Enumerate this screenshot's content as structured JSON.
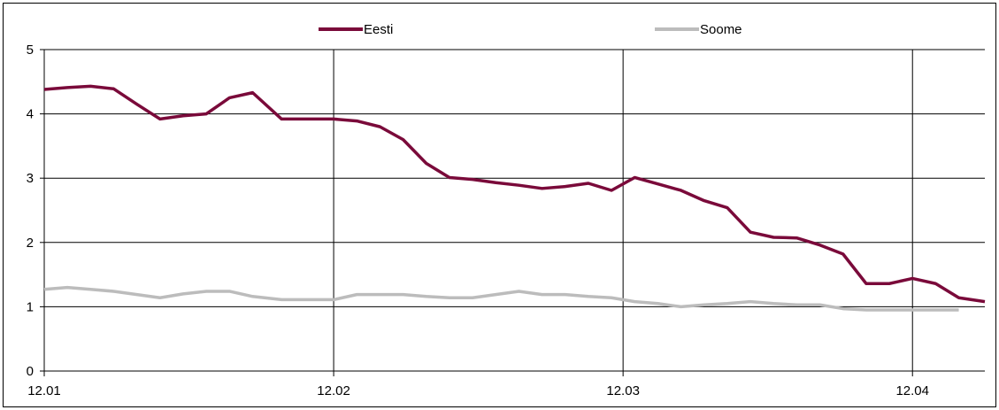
{
  "chart_data": {
    "type": "line",
    "x_ticks": [
      "12.01",
      "12.02",
      "12.03",
      "12.04"
    ],
    "y_ticks": [
      "0",
      "1",
      "2",
      "3",
      "4",
      "5"
    ],
    "ylim": [
      0,
      5
    ],
    "xlim": [
      0,
      3.25
    ],
    "grid": true,
    "legend_position": "top",
    "series": [
      {
        "name": "Eesti",
        "color": "#7a0a3a",
        "x": [
          0.0,
          0.08,
          0.16,
          0.24,
          0.32,
          0.4,
          0.48,
          0.56,
          0.64,
          0.72,
          0.82,
          0.9,
          1.0,
          1.08,
          1.16,
          1.24,
          1.32,
          1.4,
          1.48,
          1.56,
          1.64,
          1.72,
          1.8,
          1.88,
          1.96,
          2.04,
          2.12,
          2.2,
          2.28,
          2.36,
          2.44,
          2.52,
          2.6,
          2.68,
          2.76,
          2.84,
          2.92,
          3.0,
          3.08,
          3.16,
          3.25
        ],
        "values": [
          4.38,
          4.41,
          4.43,
          4.39,
          4.15,
          3.92,
          3.97,
          4.0,
          4.25,
          4.33,
          3.92,
          3.92,
          3.92,
          3.89,
          3.8,
          3.6,
          3.23,
          3.01,
          2.98,
          2.93,
          2.89,
          2.84,
          2.87,
          2.92,
          2.81,
          3.01,
          2.91,
          2.81,
          2.65,
          2.54,
          2.16,
          2.08,
          2.07,
          1.96,
          1.82,
          1.36,
          1.36,
          1.44,
          1.36,
          1.14,
          1.08
        ]
      },
      {
        "name": "Soome",
        "color": "#bcbcbc",
        "x": [
          0.0,
          0.08,
          0.16,
          0.24,
          0.32,
          0.4,
          0.48,
          0.56,
          0.64,
          0.72,
          0.82,
          0.9,
          1.0,
          1.08,
          1.16,
          1.24,
          1.32,
          1.4,
          1.48,
          1.56,
          1.64,
          1.72,
          1.8,
          1.88,
          1.96,
          2.04,
          2.12,
          2.2,
          2.28,
          2.36,
          2.44,
          2.52,
          2.6,
          2.68,
          2.76,
          2.84,
          2.92,
          3.0,
          3.08,
          3.16
        ],
        "values": [
          1.27,
          1.3,
          1.27,
          1.24,
          1.19,
          1.14,
          1.2,
          1.24,
          1.24,
          1.16,
          1.11,
          1.11,
          1.11,
          1.19,
          1.19,
          1.19,
          1.16,
          1.14,
          1.14,
          1.19,
          1.24,
          1.19,
          1.19,
          1.16,
          1.14,
          1.08,
          1.05,
          1.0,
          1.03,
          1.05,
          1.08,
          1.05,
          1.03,
          1.03,
          0.97,
          0.95,
          0.95,
          0.95,
          0.95,
          0.95
        ]
      }
    ]
  }
}
